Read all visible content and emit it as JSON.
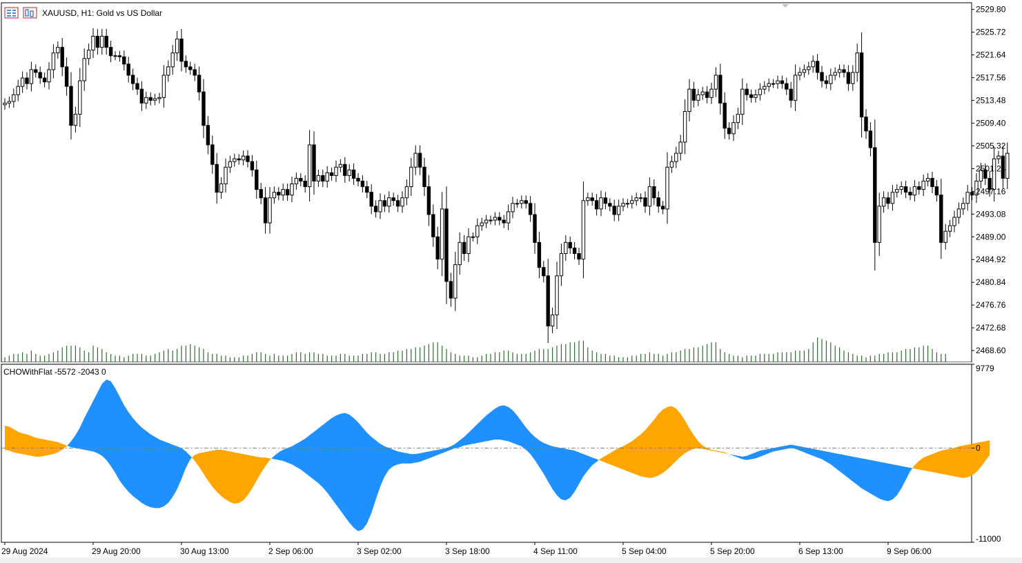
{
  "window": {
    "symbol_label": "XAUUSD, H1:  Gold vs US Dollar",
    "indicator_label": "CHOWithFlat -5572 -2043 0"
  },
  "icons": [
    "candles-icon",
    "bars-icon"
  ],
  "colors": {
    "bull_candle_body": "#ffffff",
    "bear_candle_body": "#000000",
    "volume": "#2e6b2e",
    "osc_positive": "#1e90ff",
    "osc_negative": "#ffa500",
    "zero_line": "#808080"
  },
  "chart_data": [
    {
      "type": "candlestick",
      "title": "XAUUSD, H1:  Gold vs US Dollar",
      "ylim": [
        2466.5,
        2531.0
      ],
      "y_ticks": [
        "2529.80",
        "2525.72",
        "2521.64",
        "2517.56",
        "2513.48",
        "2509.40",
        "2505.32",
        "2501.24",
        "2497.16",
        "2493.08",
        "2489.00",
        "2484.92",
        "2480.84",
        "2476.76",
        "2472.68",
        "2468.60"
      ],
      "x_ticks": [
        "29 Aug 2024",
        "29 Aug 20:00",
        "30 Aug 13:00",
        "2 Sep 06:00",
        "3 Sep 02:00",
        "3 Sep 18:00",
        "4 Sep 11:00",
        "5 Sep 04:00",
        "5 Sep 20:00",
        "6 Sep 13:00",
        "9 Sep 06:00"
      ],
      "x_tick_bar_index": [
        0,
        20,
        40,
        60,
        80,
        100,
        120,
        140,
        160,
        180,
        200
      ],
      "closes": [
        2513.0,
        2513.3,
        2514.5,
        2516.0,
        2517.5,
        2516.5,
        2519.0,
        2518.5,
        2517.5,
        2516.8,
        2519.0,
        2522.0,
        2523.0,
        2519.5,
        2516.0,
        2509.0,
        2511.0,
        2517.0,
        2521.0,
        2522.5,
        2525.0,
        2523.0,
        2525.0,
        2523.0,
        2521.5,
        2521.5,
        2521.3,
        2520.0,
        2518.0,
        2516.5,
        2515.5,
        2513.0,
        2514.0,
        2513.5,
        2513.8,
        2514.0,
        2518.0,
        2519.5,
        2522.0,
        2524.5,
        2520.5,
        2519.5,
        2519.0,
        2518.0,
        2515.0,
        2509.0,
        2505.5,
        2502.0,
        2497.0,
        2498.5,
        2501.5,
        2502.5,
        2503.0,
        2502.8,
        2503.5,
        2502.5,
        2501.0,
        2497.5,
        2496.0,
        2491.5,
        2496.0,
        2497.0,
        2496.5,
        2497.5,
        2496.5,
        2498.5,
        2499.5,
        2499.0,
        2498.0,
        2505.5,
        2499.0,
        2500.0,
        2499.0,
        2500.5,
        2500.0,
        2501.5,
        2502.0,
        2500.0,
        2501.0,
        2499.5,
        2499.0,
        2498.0,
        2497.0,
        2494.5,
        2493.5,
        2495.5,
        2494.5,
        2496.0,
        2495.5,
        2494.5,
        2496.0,
        2498.0,
        2501.5,
        2504.0,
        2501.5,
        2498.0,
        2493.0,
        2489.0,
        2485.0,
        2494.0,
        2481.0,
        2478.0,
        2484.0,
        2488.0,
        2486.0,
        2489.0,
        2489.0,
        2491.0,
        2491.5,
        2492.0,
        2492.0,
        2492.5,
        2492.0,
        2491.5,
        2493.5,
        2495.0,
        2495.0,
        2495.5,
        2495.0,
        2493.0,
        2488.0,
        2483.5,
        2482.0,
        2473.0,
        2475.0,
        2482.0,
        2486.0,
        2488.0,
        2487.0,
        2486.0,
        2485.0,
        2495.5,
        2496.0,
        2495.5,
        2494.0,
        2496.0,
        2495.0,
        2494.5,
        2493.0,
        2494.5,
        2495.0,
        2495.0,
        2495.5,
        2496.0,
        2496.0,
        2494.5,
        2498.0,
        2496.0,
        2494.5,
        2494.0,
        2501.5,
        2502.5,
        2504.0,
        2506.0,
        2511.5,
        2515.5,
        2513.5,
        2514.5,
        2515.0,
        2514.0,
        2515.5,
        2518.0,
        2513.0,
        2508.5,
        2507.5,
        2509.5,
        2511.0,
        2515.5,
        2514.5,
        2514.0,
        2514.5,
        2515.5,
        2516.0,
        2516.5,
        2516.5,
        2517.0,
        2516.5,
        2515.5,
        2513.5,
        2518.0,
        2518.5,
        2519.0,
        2519.5,
        2520.5,
        2518.5,
        2517.0,
        2516.5,
        2518.0,
        2518.5,
        2519.0,
        2518.5,
        2516.5,
        2518.5,
        2522.0,
        2510.5,
        2508.0,
        2505.0,
        2488.0,
        2494.5,
        2496.0,
        2495.0,
        2497.0,
        2497.5,
        2498.0,
        2497.0,
        2496.5,
        2498.0,
        2497.5,
        2499.0,
        2499.5,
        2498.0,
        2496.5,
        2488.0,
        2490.0,
        2491.0,
        2492.5,
        2494.0,
        2495.0,
        2497.0,
        2496.5,
        2499.0,
        2501.0,
        2499.5,
        2497.5,
        2503.0,
        2503.5,
        2499.5,
        2504.0
      ],
      "volume_relative": [
        0.3,
        0.4,
        0.5,
        0.5,
        0.6,
        0.5,
        0.7,
        0.5,
        0.4,
        0.4,
        0.5,
        0.6,
        0.7,
        0.9,
        1.0,
        1.0,
        1.0,
        0.9,
        0.7,
        0.6,
        1.0,
        0.9,
        0.8,
        0.6,
        0.5,
        0.4,
        0.4,
        0.3,
        0.4,
        0.5,
        0.5,
        0.5,
        0.4,
        0.4,
        0.5,
        0.6,
        0.7,
        0.8,
        0.7,
        0.8,
        1.0,
        1.0,
        1.1,
        1.0,
        0.9,
        0.8,
        0.6,
        0.5,
        0.5,
        0.4,
        0.4,
        0.3,
        0.3,
        0.3,
        0.4,
        0.4,
        0.5,
        0.6,
        0.6,
        0.5,
        0.4,
        0.5,
        0.4,
        0.4,
        0.4,
        0.5,
        0.6,
        0.6,
        0.5,
        0.6,
        0.6,
        0.5,
        0.5,
        0.4,
        0.4,
        0.4,
        0.5,
        0.5,
        0.4,
        0.4,
        0.4,
        0.5,
        0.5,
        0.6,
        0.6,
        0.5,
        0.5,
        0.6,
        0.6,
        0.7,
        0.7,
        0.8,
        0.8,
        0.9,
        0.9,
        1.0,
        1.1,
        1.2,
        1.2,
        1.0,
        0.8,
        0.6,
        0.5,
        0.4,
        0.4,
        0.4,
        0.3,
        0.3,
        0.4,
        0.5,
        0.5,
        0.6,
        0.6,
        0.7,
        0.7,
        0.6,
        0.5,
        0.5,
        0.5,
        0.6,
        0.7,
        0.8,
        0.8,
        0.8,
        0.9,
        1.0,
        1.1,
        1.1,
        1.2,
        1.2,
        1.3,
        1.3,
        0.9,
        0.7,
        0.6,
        0.5,
        0.5,
        0.4,
        0.4,
        0.3,
        0.3,
        0.3,
        0.4,
        0.4,
        0.5,
        0.5,
        0.6,
        0.5,
        0.5,
        0.4,
        0.5,
        0.6,
        0.6,
        0.7,
        0.8,
        0.8,
        0.9,
        0.9,
        1.0,
        1.1,
        1.2,
        1.2,
        0.8,
        0.6,
        0.5,
        0.4,
        0.4,
        0.3,
        0.4,
        0.4,
        0.4,
        0.5,
        0.5,
        0.5,
        0.5,
        0.6,
        0.6,
        0.6,
        0.6,
        0.7,
        0.7,
        0.7,
        0.8,
        1.2,
        1.5,
        1.4,
        1.3,
        1.2,
        1.0,
        0.9,
        0.7,
        0.6,
        0.5,
        0.4,
        0.4,
        0.3,
        0.4,
        0.4,
        0.5,
        0.5,
        0.6,
        0.6,
        0.6,
        0.7,
        0.8,
        0.8,
        0.9,
        0.9,
        1.0,
        1.0,
        0.8,
        0.6,
        0.5,
        0.5
      ]
    },
    {
      "type": "area",
      "title": "CHOWithFlat -5572 -2043 0",
      "ylim": [
        -11000,
        9779
      ],
      "y_ticks": [
        "9779",
        "0",
        "-11000"
      ],
      "series": [
        {
          "values": [
            2600,
            2500,
            2200,
            1900,
            1700,
            1600,
            1400,
            1200,
            1100,
            1000,
            900,
            800,
            700,
            500,
            300,
            100,
            0,
            -100,
            -200,
            -300,
            -400,
            -600,
            -900,
            -1400,
            -2100,
            -2900,
            -3800,
            -4500,
            -5100,
            -5600,
            -6000,
            -6400,
            -6700,
            -6900,
            -7000,
            -7000,
            -6800,
            -6400,
            -5700,
            -4800,
            -3600,
            -2300,
            -1300,
            -800,
            -600,
            -500,
            -400,
            -300,
            -200,
            -200,
            -300,
            -400,
            -500,
            -600,
            -700,
            -800,
            -900,
            -1000,
            -1100,
            -1100,
            -1200,
            -1300,
            -1400,
            -1500,
            -1700,
            -1900,
            -2200,
            -2500,
            -2900,
            -3300,
            -3700,
            -4100,
            -4600,
            -5200,
            -5900,
            -6600,
            -7300,
            -8000,
            -8700,
            -9300,
            -9700,
            -9500,
            -8800,
            -7600,
            -6000,
            -4500,
            -3300,
            -2500,
            -2100,
            -1900,
            -1800,
            -1800,
            -1800,
            -1700,
            -1600,
            -1400,
            -1200,
            -1000,
            -800,
            -600,
            -400,
            -200,
            0,
            100,
            300,
            400,
            500,
            600,
            700,
            800,
            900,
            1000,
            1000,
            900,
            800,
            600,
            400,
            200,
            -200,
            -700,
            -1400,
            -2200,
            -3000,
            -3900,
            -4800,
            -5500,
            -6000,
            -6100,
            -5800,
            -5100,
            -4200,
            -3300,
            -2600,
            -2000,
            -1600,
            -1200,
            -900,
            -600,
            -300,
            0,
            200,
            500,
            800,
            1200,
            1600,
            2100,
            2700,
            3300,
            4000,
            4500,
            4800,
            4900,
            4600,
            4000,
            3200,
            2300,
            1500,
            800,
            300,
            0,
            -200,
            -300,
            -400,
            -500,
            -700,
            -900,
            -1100,
            -1300,
            -1400,
            -1300,
            -1200,
            -1000,
            -800,
            -600,
            -400,
            -300,
            -200,
            -100,
            0,
            -100,
            -300,
            -500,
            -700,
            -900,
            -1100,
            -1300,
            -1600,
            -1900,
            -2300,
            -2700,
            -3100,
            -3500,
            -3900,
            -4300,
            -4700,
            -5000,
            -5300,
            -5600,
            -5900,
            -6100,
            -6200,
            -6000,
            -5500,
            -4700,
            -3700,
            -2700,
            -2000,
            -1500,
            -1100,
            -900,
            -700,
            -500,
            -300,
            -200,
            -100,
            0,
            200,
            300,
            400,
            500,
            600,
            700,
            800,
            900
          ]
        },
        {
          "values": [
            -200,
            -300,
            -500,
            -600,
            -700,
            -800,
            -900,
            -1000,
            -1000,
            -900,
            -800,
            -700,
            -500,
            -200,
            200,
            800,
            1500,
            2400,
            3500,
            4500,
            5500,
            6500,
            7500,
            8000,
            7800,
            7000,
            6000,
            5000,
            4200,
            3500,
            2900,
            2400,
            2000,
            1600,
            1300,
            1000,
            800,
            600,
            400,
            200,
            0,
            -400,
            -900,
            -1500,
            -2200,
            -3000,
            -3800,
            -4500,
            -5100,
            -5600,
            -6000,
            -6300,
            -6500,
            -6400,
            -6100,
            -5500,
            -4700,
            -3800,
            -2900,
            -2100,
            -1400,
            -900,
            -500,
            -200,
            0,
            200,
            500,
            800,
            1100,
            1500,
            1900,
            2300,
            2700,
            3100,
            3500,
            3800,
            4000,
            4100,
            3900,
            3500,
            3000,
            2400,
            1800,
            1300,
            900,
            500,
            200,
            0,
            -200,
            -400,
            -500,
            -600,
            -700,
            -700,
            -600,
            -500,
            -400,
            -300,
            -200,
            -100,
            0,
            200,
            500,
            900,
            1300,
            1800,
            2300,
            2800,
            3300,
            3800,
            4200,
            4600,
            4900,
            5000,
            4800,
            4400,
            3800,
            3100,
            2400,
            1800,
            1300,
            900,
            600,
            400,
            200,
            100,
            0,
            -100,
            -200,
            -300,
            -500,
            -700,
            -900,
            -1100,
            -1300,
            -1500,
            -1700,
            -1900,
            -2100,
            -2300,
            -2500,
            -2700,
            -2900,
            -3100,
            -3300,
            -3400,
            -3500,
            -3400,
            -3200,
            -2900,
            -2500,
            -2000,
            -1500,
            -1000,
            -600,
            -300,
            -100,
            0,
            -100,
            -200,
            -300,
            -400,
            -500,
            -600,
            -700,
            -800,
            -900,
            -1000,
            -900,
            -700,
            -500,
            -300,
            -200,
            -100,
            0,
            100,
            200,
            300,
            400,
            300,
            200,
            100,
            0,
            -100,
            -200,
            -300,
            -400,
            -500,
            -600,
            -700,
            -800,
            -900,
            -1000,
            -1100,
            -1200,
            -1300,
            -1400,
            -1500,
            -1600,
            -1700,
            -1800,
            -1900,
            -2000,
            -2100,
            -2200,
            -2300,
            -2400,
            -2500,
            -2600,
            -2700,
            -2800,
            -2900,
            -3000,
            -3100,
            -3200,
            -3300,
            -3400,
            -3500,
            -3400,
            -3200,
            -2800,
            -2200,
            -1500,
            -800,
            -200,
            300,
            900,
            1600,
            2200
          ]
        }
      ]
    }
  ]
}
